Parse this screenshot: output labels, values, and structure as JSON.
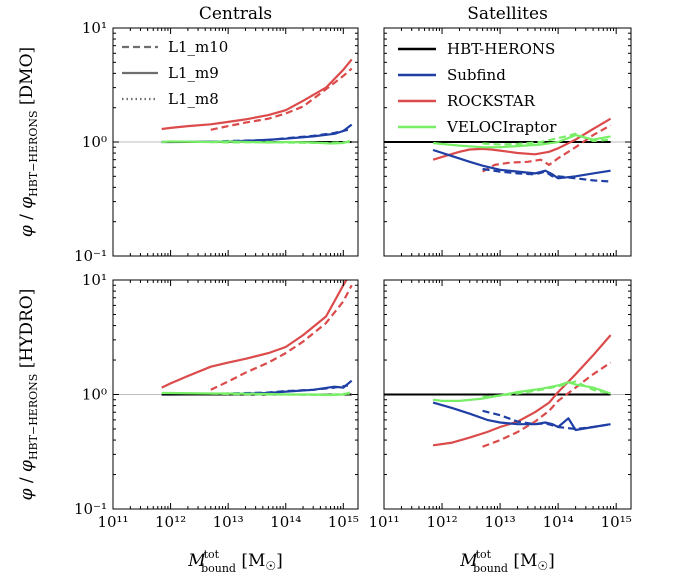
{
  "colors": {
    "hbt": "#000000",
    "subfind": "#1f3fa5",
    "rockstar": "#dc4b4b",
    "velociraptor": "#77ee66",
    "legend_gray": "#6e6e6e",
    "refline": "#bdbdbd"
  },
  "chart_data": {
    "type": "line",
    "xscale": "log",
    "yscale": "log",
    "xlim": [
      100000000000.0,
      1800000000000000.0
    ],
    "ylim": [
      0.1,
      10
    ],
    "xticks": [
      100000000000.0,
      1000000000000.0,
      10000000000000.0,
      100000000000000.0,
      1000000000000000.0
    ],
    "xtick_labels": [
      "10¹¹",
      "10¹²",
      "10¹³",
      "10¹⁴",
      "10¹⁵"
    ],
    "yticks": [
      0.1,
      1,
      10
    ],
    "ytick_labels": [
      "10⁻¹",
      "10⁰",
      "10¹"
    ],
    "xlabel": "M_bound^tot [M☉]",
    "ylabel_top": "φ / φ_HBT-HERONS [DMO]",
    "ylabel_bottom": "φ / φ_HBT-HERONS [HYDRO]",
    "column_titles": [
      "Centrals",
      "Satellites"
    ],
    "legend_styles": [
      {
        "label": "L1_m10",
        "dash": "dashed"
      },
      {
        "label": "L1_m9",
        "dash": "solid"
      },
      {
        "label": "L1_m8",
        "dash": "dotted"
      }
    ],
    "legend_finders": [
      {
        "label": "HBT-HERONS",
        "color_key": "hbt"
      },
      {
        "label": "Subfind",
        "color_key": "subfind"
      },
      {
        "label": "ROCKSTAR",
        "color_key": "rockstar"
      },
      {
        "label": "VELOCIraptor",
        "color_key": "velociraptor"
      }
    ],
    "panels": [
      {
        "id": "dmo-centrals",
        "series": [
          {
            "finder": "rockstar",
            "style": "solid",
            "x": [
              700000000000.0,
              1000000000000.0,
              2000000000000.0,
              5000000000000.0,
              10000000000000.0,
              20000000000000.0,
              50000000000000.0,
              100000000000000.0,
              200000000000000.0,
              500000000000000.0,
              1000000000000000.0,
              1400000000000000.0
            ],
            "y": [
              1.3,
              1.33,
              1.38,
              1.43,
              1.5,
              1.58,
              1.72,
              1.9,
              2.3,
              3.0,
              4.3,
              5.3
            ]
          },
          {
            "finder": "rockstar",
            "style": "dashed",
            "x": [
              5000000000000.0,
              10000000000000.0,
              20000000000000.0,
              50000000000000.0,
              100000000000000.0,
              200000000000000.0,
              500000000000000.0,
              1000000000000000.0,
              1400000000000000.0
            ],
            "y": [
              1.28,
              1.38,
              1.48,
              1.6,
              1.78,
              2.05,
              2.9,
              3.8,
              4.4
            ]
          },
          {
            "finder": "subfind",
            "style": "solid",
            "x": [
              700000000000.0,
              1000000000000.0,
              10000000000000.0,
              30000000000000.0,
              100000000000000.0,
              300000000000000.0,
              700000000000000.0,
              1000000000000000.0,
              1400000000000000.0
            ],
            "y": [
              1.0,
              1.0,
              1.01,
              1.03,
              1.07,
              1.12,
              1.18,
              1.25,
              1.42
            ]
          },
          {
            "finder": "subfind",
            "style": "dashed",
            "x": [
              5000000000000.0,
              10000000000000.0,
              50000000000000.0,
              100000000000000.0,
              300000000000000.0,
              700000000000000.0,
              1200000000000000.0
            ],
            "y": [
              1.0,
              1.02,
              1.04,
              1.08,
              1.13,
              1.2,
              1.28
            ]
          },
          {
            "finder": "hbt",
            "style": "solid",
            "x": [
              700000000000.0,
              1400000000000000.0
            ],
            "y": [
              1.0,
              1.0
            ]
          },
          {
            "finder": "velociraptor",
            "style": "solid",
            "x": [
              700000000000.0,
              1000000000000.0,
              5000000000000.0,
              10000000000000.0,
              50000000000000.0,
              100000000000000.0,
              300000000000000.0,
              600000000000000.0,
              1000000000000000.0,
              1300000000000000.0
            ],
            "y": [
              1.0,
              1.01,
              1.0,
              1.01,
              0.99,
              1.0,
              0.99,
              0.97,
              0.98,
              1.02
            ]
          },
          {
            "finder": "velociraptor",
            "style": "dashed",
            "x": [
              5000000000000.0,
              10000000000000.0,
              50000000000000.0,
              100000000000000.0,
              500000000000000.0,
              1300000000000000.0
            ],
            "y": [
              1.0,
              0.99,
              1.0,
              0.99,
              0.98,
              1.0
            ]
          }
        ]
      },
      {
        "id": "dmo-satellites",
        "series": [
          {
            "finder": "hbt",
            "style": "solid",
            "x": [
              100000000000.0,
              800000000000000.0
            ],
            "y": [
              1.0,
              1.0
            ]
          },
          {
            "finder": "rockstar",
            "style": "solid",
            "x": [
              700000000000.0,
              1200000000000.0,
              2000000000000.0,
              3000000000000.0,
              5000000000000.0,
              7000000000000.0,
              10000000000000.0,
              20000000000000.0,
              40000000000000.0,
              70000000000000.0,
              100000000000000.0,
              200000000000000.0,
              400000000000000.0,
              800000000000000.0
            ],
            "y": [
              0.7,
              0.76,
              0.82,
              0.86,
              0.87,
              0.86,
              0.84,
              0.8,
              0.78,
              0.82,
              0.88,
              1.05,
              1.3,
              1.6
            ]
          },
          {
            "finder": "rockstar",
            "style": "dashed",
            "x": [
              5000000000000.0,
              8000000000000.0,
              15000000000000.0,
              30000000000000.0,
              50000000000000.0,
              70000000000000.0,
              100000000000000.0,
              200000000000000.0,
              400000000000000.0,
              800000000000000.0
            ],
            "y": [
              0.55,
              0.63,
              0.66,
              0.67,
              0.7,
              0.63,
              0.72,
              0.9,
              1.15,
              1.4
            ]
          },
          {
            "finder": "subfind",
            "style": "solid",
            "x": [
              700000000000.0,
              1500000000000.0,
              3000000000000.0,
              5000000000000.0,
              10000000000000.0,
              20000000000000.0,
              40000000000000.0,
              60000000000000.0,
              80000000000000.0,
              100000000000000.0,
              200000000000000.0,
              400000000000000.0,
              800000000000000.0
            ],
            "y": [
              0.85,
              0.75,
              0.67,
              0.62,
              0.57,
              0.55,
              0.53,
              0.56,
              0.52,
              0.48,
              0.5,
              0.53,
              0.56
            ]
          },
          {
            "finder": "subfind",
            "style": "dashed",
            "x": [
              5000000000000.0,
              10000000000000.0,
              20000000000000.0,
              40000000000000.0,
              60000000000000.0,
              80000000000000.0,
              100000000000000.0,
              200000000000000.0,
              400000000000000.0,
              800000000000000.0
            ],
            "y": [
              0.58,
              0.55,
              0.53,
              0.52,
              0.55,
              0.5,
              0.5,
              0.48,
              0.46,
              0.45
            ]
          },
          {
            "finder": "velociraptor",
            "style": "solid",
            "x": [
              700000000000.0,
              1000000000000.0,
              2000000000000.0,
              5000000000000.0,
              10000000000000.0,
              20000000000000.0,
              50000000000000.0,
              100000000000000.0,
              200000000000000.0,
              400000000000000.0,
              800000000000000.0
            ],
            "y": [
              0.98,
              0.96,
              0.93,
              0.9,
              0.9,
              0.92,
              0.95,
              1.0,
              1.15,
              1.05,
              1.12
            ]
          },
          {
            "finder": "velociraptor",
            "style": "dashed",
            "x": [
              5000000000000.0,
              10000000000000.0,
              20000000000000.0,
              50000000000000.0,
              100000000000000.0,
              200000000000000.0,
              400000000000000.0,
              800000000000000.0
            ],
            "y": [
              0.97,
              0.95,
              0.96,
              1.0,
              1.08,
              1.18,
              1.02,
              1.05
            ]
          }
        ]
      },
      {
        "id": "hydro-centrals",
        "series": [
          {
            "finder": "rockstar",
            "style": "solid",
            "x": [
              700000000000.0,
              1000000000000.0,
              2000000000000.0,
              5000000000000.0,
              10000000000000.0,
              20000000000000.0,
              50000000000000.0,
              100000000000000.0,
              200000000000000.0,
              500000000000000.0,
              700000000000000.0,
              1000000000000000.0,
              1400000000000000.0
            ],
            "y": [
              1.15,
              1.25,
              1.45,
              1.75,
              1.9,
              2.05,
              2.3,
              2.6,
              3.3,
              4.8,
              6.5,
              9.0,
              12.0
            ]
          },
          {
            "finder": "rockstar",
            "style": "dashed",
            "x": [
              5000000000000.0,
              10000000000000.0,
              20000000000000.0,
              50000000000000.0,
              100000000000000.0,
              200000000000000.0,
              500000000000000.0,
              1000000000000000.0,
              1400000000000000.0
            ],
            "y": [
              1.1,
              1.3,
              1.55,
              1.9,
              2.3,
              2.9,
              4.2,
              6.5,
              9.0
            ]
          },
          {
            "finder": "subfind",
            "style": "solid",
            "x": [
              700000000000.0,
              1000000000000.0,
              10000000000000.0,
              50000000000000.0,
              100000000000000.0,
              300000000000000.0,
              700000000000000.0,
              1000000000000000.0,
              1400000000000000.0
            ],
            "y": [
              1.0,
              1.0,
              1.01,
              1.03,
              1.06,
              1.1,
              1.17,
              1.15,
              1.32
            ]
          },
          {
            "finder": "subfind",
            "style": "dashed",
            "x": [
              5000000000000.0,
              10000000000000.0,
              50000000000000.0,
              100000000000000.0,
              300000000000000.0,
              700000000000000.0,
              1200000000000000.0
            ],
            "y": [
              1.01,
              1.02,
              1.04,
              1.07,
              1.1,
              1.15,
              1.2
            ]
          },
          {
            "finder": "hbt",
            "style": "solid",
            "x": [
              700000000000.0,
              1400000000000000.0
            ],
            "y": [
              1.0,
              1.0
            ]
          },
          {
            "finder": "velociraptor",
            "style": "solid",
            "x": [
              700000000000.0,
              1000000000000.0,
              5000000000000.0,
              10000000000000.0,
              50000000000000.0,
              100000000000000.0,
              300000000000000.0,
              600000000000000.0,
              1000000000000000.0,
              1300000000000000.0
            ],
            "y": [
              1.03,
              1.03,
              1.02,
              1.02,
              1.01,
              1.0,
              1.0,
              0.99,
              1.0,
              1.04
            ]
          },
          {
            "finder": "velociraptor",
            "style": "dashed",
            "x": [
              5000000000000.0,
              10000000000000.0,
              50000000000000.0,
              100000000000000.0,
              500000000000000.0,
              1300000000000000.0
            ],
            "y": [
              1.02,
              1.01,
              1.0,
              1.0,
              0.99,
              1.02
            ]
          }
        ]
      },
      {
        "id": "hydro-satellites",
        "series": [
          {
            "finder": "hbt",
            "style": "solid",
            "x": [
              100000000000.0,
              800000000000000.0
            ],
            "y": [
              1.0,
              1.0
            ]
          },
          {
            "finder": "rockstar",
            "style": "solid",
            "x": [
              700000000000.0,
              1500000000000.0,
              3000000000000.0,
              6000000000000.0,
              10000000000000.0,
              20000000000000.0,
              40000000000000.0,
              70000000000000.0,
              100000000000000.0,
              200000000000000.0,
              400000000000000.0,
              800000000000000.0
            ],
            "y": [
              0.36,
              0.38,
              0.42,
              0.47,
              0.52,
              0.58,
              0.7,
              0.85,
              1.05,
              1.5,
              2.2,
              3.3
            ]
          },
          {
            "finder": "rockstar",
            "style": "dashed",
            "x": [
              5000000000000.0,
              10000000000000.0,
              20000000000000.0,
              40000000000000.0,
              70000000000000.0,
              100000000000000.0,
              200000000000000.0,
              400000000000000.0,
              800000000000000.0
            ],
            "y": [
              0.35,
              0.4,
              0.47,
              0.58,
              0.72,
              0.88,
              1.15,
              1.5,
              1.9
            ]
          },
          {
            "finder": "subfind",
            "style": "solid",
            "x": [
              700000000000.0,
              1500000000000.0,
              3000000000000.0,
              6000000000000.0,
              10000000000000.0,
              20000000000000.0,
              40000000000000.0,
              60000000000000.0,
              80000000000000.0,
              100000000000000.0,
              150000000000000.0,
              200000000000000.0,
              400000000000000.0,
              800000000000000.0
            ],
            "y": [
              0.85,
              0.76,
              0.68,
              0.6,
              0.57,
              0.55,
              0.55,
              0.57,
              0.55,
              0.52,
              0.62,
              0.49,
              0.52,
              0.55
            ]
          },
          {
            "finder": "subfind",
            "style": "dashed",
            "x": [
              5000000000000.0,
              10000000000000.0,
              20000000000000.0,
              40000000000000.0,
              60000000000000.0,
              100000000000000.0,
              200000000000000.0,
              400000000000000.0,
              800000000000000.0
            ],
            "y": [
              0.72,
              0.66,
              0.58,
              0.55,
              0.56,
              0.52,
              0.5,
              0.52,
              0.55
            ]
          },
          {
            "finder": "velociraptor",
            "style": "solid",
            "x": [
              700000000000.0,
              1000000000000.0,
              2000000000000.0,
              5000000000000.0,
              10000000000000.0,
              20000000000000.0,
              50000000000000.0,
              100000000000000.0,
              150000000000000.0,
              200000000000000.0,
              400000000000000.0,
              800000000000000.0
            ],
            "y": [
              0.9,
              0.88,
              0.88,
              0.92,
              0.98,
              1.05,
              1.12,
              1.2,
              1.28,
              1.22,
              1.15,
              1.02
            ]
          },
          {
            "finder": "velociraptor",
            "style": "dashed",
            "x": [
              5000000000000.0,
              10000000000000.0,
              20000000000000.0,
              50000000000000.0,
              100000000000000.0,
              200000000000000.0,
              400000000000000.0,
              800000000000000.0
            ],
            "y": [
              0.95,
              0.98,
              1.02,
              1.1,
              1.18,
              1.3,
              1.1,
              1.02
            ]
          }
        ]
      }
    ]
  }
}
